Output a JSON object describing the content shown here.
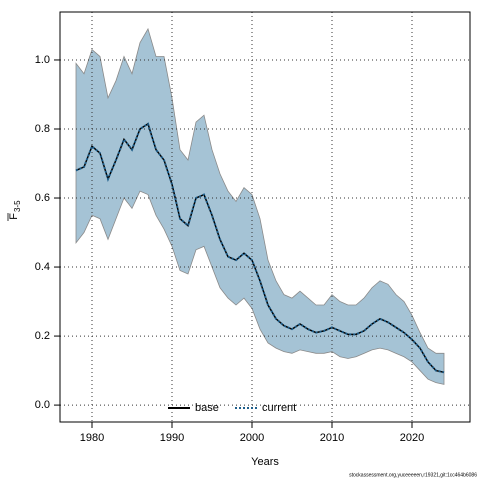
{
  "chart_data": {
    "type": "line",
    "xlabel": "Years",
    "ylabel": "F",
    "ylabel_subscript": "3-5",
    "footnote": "stockassessment.org,yuceeeeen,r19321,git:1cc464b6086",
    "x": [
      1978,
      1979,
      1980,
      1981,
      1982,
      1983,
      1984,
      1985,
      1986,
      1987,
      1988,
      1989,
      1990,
      1991,
      1992,
      1993,
      1994,
      1995,
      1996,
      1997,
      1998,
      1999,
      2000,
      2001,
      2002,
      2003,
      2004,
      2005,
      2006,
      2007,
      2008,
      2009,
      2010,
      2011,
      2012,
      2013,
      2014,
      2015,
      2016,
      2017,
      2018,
      2019,
      2020,
      2021,
      2022,
      2023,
      2024
    ],
    "band": {
      "color": "#a5c3d5",
      "edge": "#8a8a8a",
      "upper": [
        0.99,
        0.96,
        1.03,
        1.01,
        0.89,
        0.94,
        1.01,
        0.96,
        1.05,
        1.09,
        1.01,
        1.01,
        0.89,
        0.74,
        0.71,
        0.82,
        0.84,
        0.74,
        0.67,
        0.62,
        0.59,
        0.63,
        0.61,
        0.54,
        0.42,
        0.36,
        0.32,
        0.31,
        0.33,
        0.31,
        0.29,
        0.29,
        0.32,
        0.3,
        0.29,
        0.29,
        0.31,
        0.34,
        0.36,
        0.35,
        0.32,
        0.3,
        0.26,
        0.21,
        0.165,
        0.15,
        0.15
      ],
      "lower": [
        0.47,
        0.5,
        0.55,
        0.54,
        0.48,
        0.54,
        0.6,
        0.57,
        0.62,
        0.61,
        0.55,
        0.51,
        0.46,
        0.39,
        0.38,
        0.45,
        0.46,
        0.4,
        0.34,
        0.31,
        0.29,
        0.31,
        0.28,
        0.22,
        0.18,
        0.165,
        0.155,
        0.15,
        0.16,
        0.155,
        0.15,
        0.15,
        0.155,
        0.14,
        0.135,
        0.14,
        0.15,
        0.16,
        0.165,
        0.16,
        0.15,
        0.14,
        0.125,
        0.1,
        0.075,
        0.065,
        0.06
      ]
    },
    "series": [
      {
        "name": "base",
        "color": "#000000",
        "dash": false,
        "values": [
          0.68,
          0.69,
          0.75,
          0.73,
          0.655,
          0.71,
          0.77,
          0.74,
          0.8,
          0.815,
          0.74,
          0.71,
          0.64,
          0.54,
          0.52,
          0.6,
          0.61,
          0.55,
          0.48,
          0.43,
          0.42,
          0.44,
          0.42,
          0.36,
          0.29,
          0.25,
          0.23,
          0.22,
          0.235,
          0.22,
          0.21,
          0.215,
          0.225,
          0.215,
          0.205,
          0.205,
          0.215,
          0.235,
          0.25,
          0.24,
          0.225,
          0.21,
          0.19,
          0.165,
          0.125,
          0.1,
          0.095
        ]
      },
      {
        "name": "current",
        "color": "#1f5f8b",
        "dash": true,
        "values": [
          0.68,
          0.69,
          0.75,
          0.73,
          0.655,
          0.71,
          0.77,
          0.74,
          0.8,
          0.815,
          0.74,
          0.71,
          0.64,
          0.54,
          0.52,
          0.6,
          0.61,
          0.55,
          0.48,
          0.43,
          0.42,
          0.44,
          0.42,
          0.36,
          0.29,
          0.25,
          0.23,
          0.22,
          0.235,
          0.22,
          0.21,
          0.215,
          0.225,
          0.215,
          0.205,
          0.205,
          0.215,
          0.235,
          0.25,
          0.24,
          0.225,
          0.21,
          0.19,
          0.165,
          0.125,
          0.1,
          0.095
        ]
      }
    ],
    "xlim": [
      1976,
      2027.25
    ],
    "xticks": [
      1980,
      1990,
      2000,
      2010,
      2020
    ],
    "ylim": [
      -0.049,
      1.139
    ],
    "yticks": [
      {
        "value": 0,
        "label": "0.0"
      },
      0.2,
      0.4,
      0.6,
      0.8,
      {
        "value": 1,
        "label": "1.0"
      }
    ],
    "grid": true,
    "legend": "bottom"
  }
}
